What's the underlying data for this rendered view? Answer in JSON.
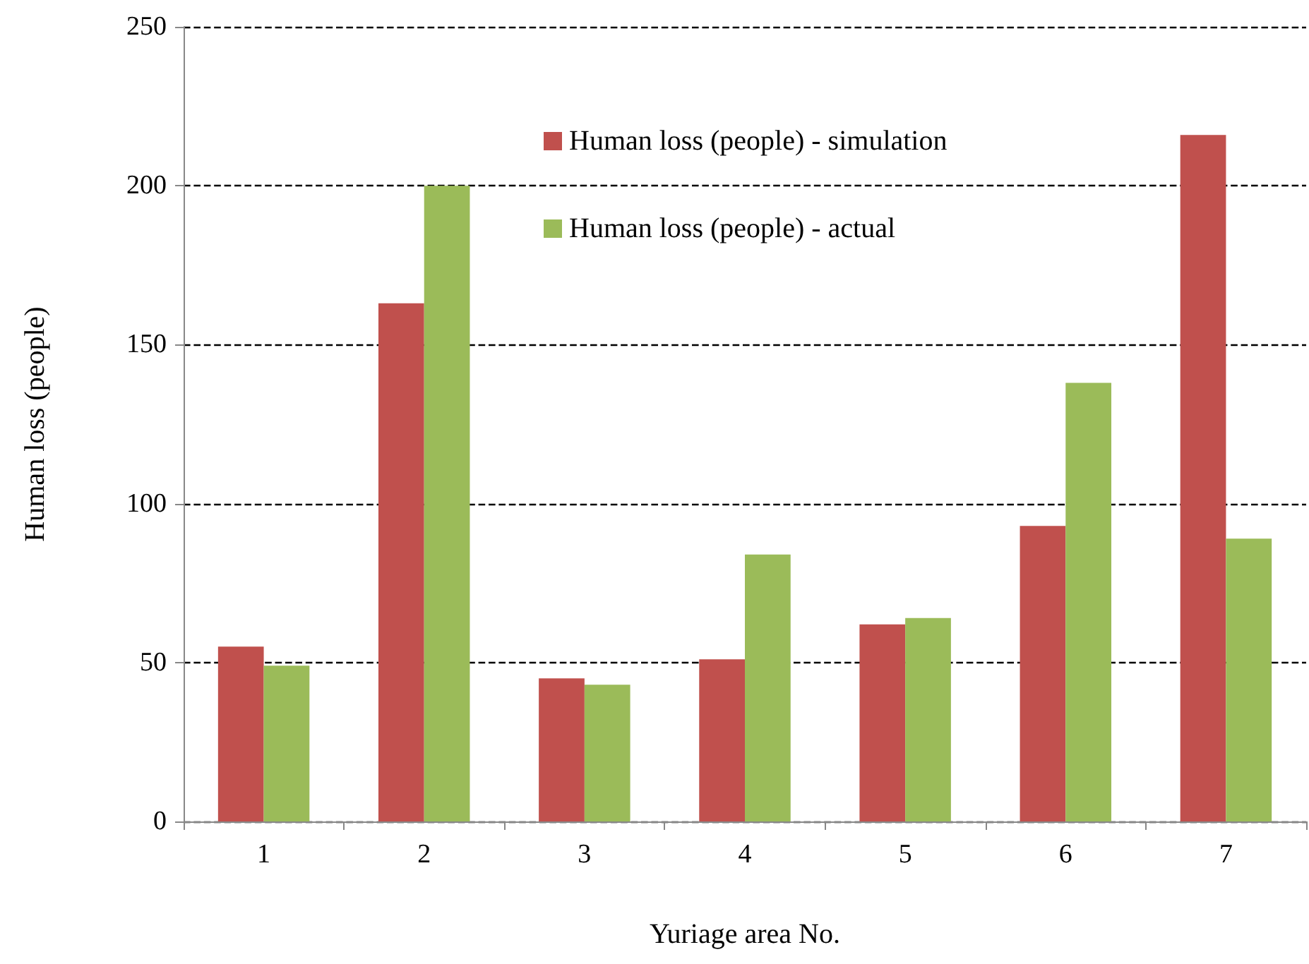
{
  "chart_data": {
    "type": "bar",
    "xlabel": "Yuriage area No.",
    "ylabel": "Human loss (people)",
    "categories": [
      "1",
      "2",
      "3",
      "4",
      "5",
      "6",
      "7"
    ],
    "series": [
      {
        "name": "Human loss (people) - simulation",
        "color": "#c0504d",
        "values": [
          55,
          163,
          45,
          51,
          62,
          93,
          216
        ]
      },
      {
        "name": "Human loss (people) - actual",
        "color": "#9bbb59",
        "values": [
          49,
          200,
          43,
          84,
          64,
          138,
          89
        ]
      }
    ],
    "ylim": [
      0,
      250
    ],
    "yticks": [
      0,
      50,
      100,
      150,
      200,
      250
    ],
    "grid": "y",
    "legend": "top right"
  }
}
